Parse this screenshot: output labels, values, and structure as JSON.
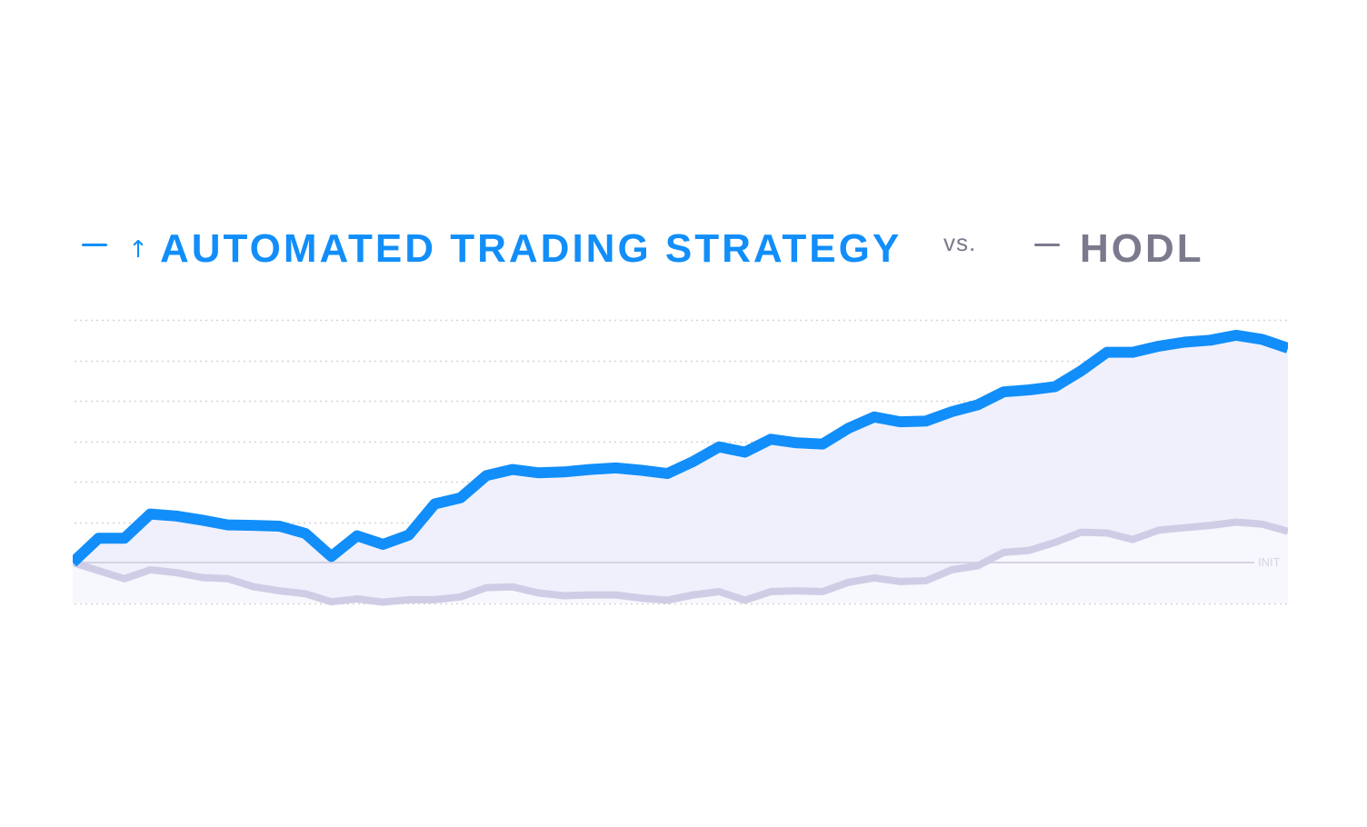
{
  "legend": {
    "strategy_label": "AUTOMATED TRADING STRATEGY",
    "strategy_icon": "arrow-up-icon",
    "strategy_arrow": "↑",
    "vs_label": "vs.",
    "hodl_label": "HODL"
  },
  "baseline": {
    "label": "INIT"
  },
  "colors": {
    "strategy": "#118ef9",
    "hodl": "#cfcde6",
    "fill_strategy": "#f0f0fc",
    "fill_hodl": "#f7f7fe",
    "grid": "#d4d4d8",
    "baseline": "#d4d2e2",
    "hodl_text": "#7b7a8d"
  },
  "chart_data": {
    "type": "line",
    "title": "AUTOMATED TRADING STRATEGY vs. HODL",
    "xlabel": "",
    "ylabel": "",
    "grid": true,
    "legend_position": "top",
    "baseline_label": "INIT",
    "baseline_value": 0,
    "ylim": [
      -1,
      6
    ],
    "y_gridlines": [
      -1,
      1,
      2,
      3,
      4,
      5,
      6
    ],
    "x": [
      0,
      1,
      2,
      3,
      4,
      5,
      6,
      7,
      8,
      9,
      10,
      11,
      12,
      13,
      14,
      15,
      16,
      17,
      18,
      19,
      20,
      21,
      22,
      23,
      24,
      25,
      26,
      27,
      28,
      29,
      30,
      31,
      32,
      33,
      34,
      35,
      36,
      37,
      38,
      39,
      40,
      41,
      42,
      43,
      44,
      45,
      46,
      47
    ],
    "series": [
      {
        "name": "AUTOMATED TRADING STRATEGY",
        "values": [
          0.0,
          0.6,
          0.6,
          1.2,
          1.15,
          1.05,
          0.93,
          0.92,
          0.9,
          0.72,
          0.15,
          0.66,
          0.45,
          0.68,
          1.45,
          1.6,
          2.15,
          2.3,
          2.22,
          2.24,
          2.3,
          2.34,
          2.28,
          2.2,
          2.5,
          2.86,
          2.73,
          3.05,
          2.96,
          2.93,
          3.32,
          3.6,
          3.48,
          3.5,
          3.73,
          3.9,
          4.22,
          4.27,
          4.35,
          4.74,
          5.2,
          5.2,
          5.35,
          5.45,
          5.5,
          5.62,
          5.52,
          5.3
        ]
      },
      {
        "name": "HODL",
        "values": [
          0.0,
          -0.2,
          -0.4,
          -0.18,
          -0.25,
          -0.37,
          -0.4,
          -0.6,
          -0.7,
          -0.77,
          -0.97,
          -0.9,
          -0.98,
          -0.92,
          -0.92,
          -0.85,
          -0.62,
          -0.6,
          -0.75,
          -0.82,
          -0.8,
          -0.8,
          -0.88,
          -0.93,
          -0.8,
          -0.72,
          -0.93,
          -0.72,
          -0.7,
          -0.72,
          -0.49,
          -0.38,
          -0.47,
          -0.45,
          -0.18,
          -0.08,
          0.25,
          0.3,
          0.5,
          0.75,
          0.73,
          0.57,
          0.8,
          0.86,
          0.92,
          1.0,
          0.95,
          0.77
        ]
      }
    ]
  }
}
